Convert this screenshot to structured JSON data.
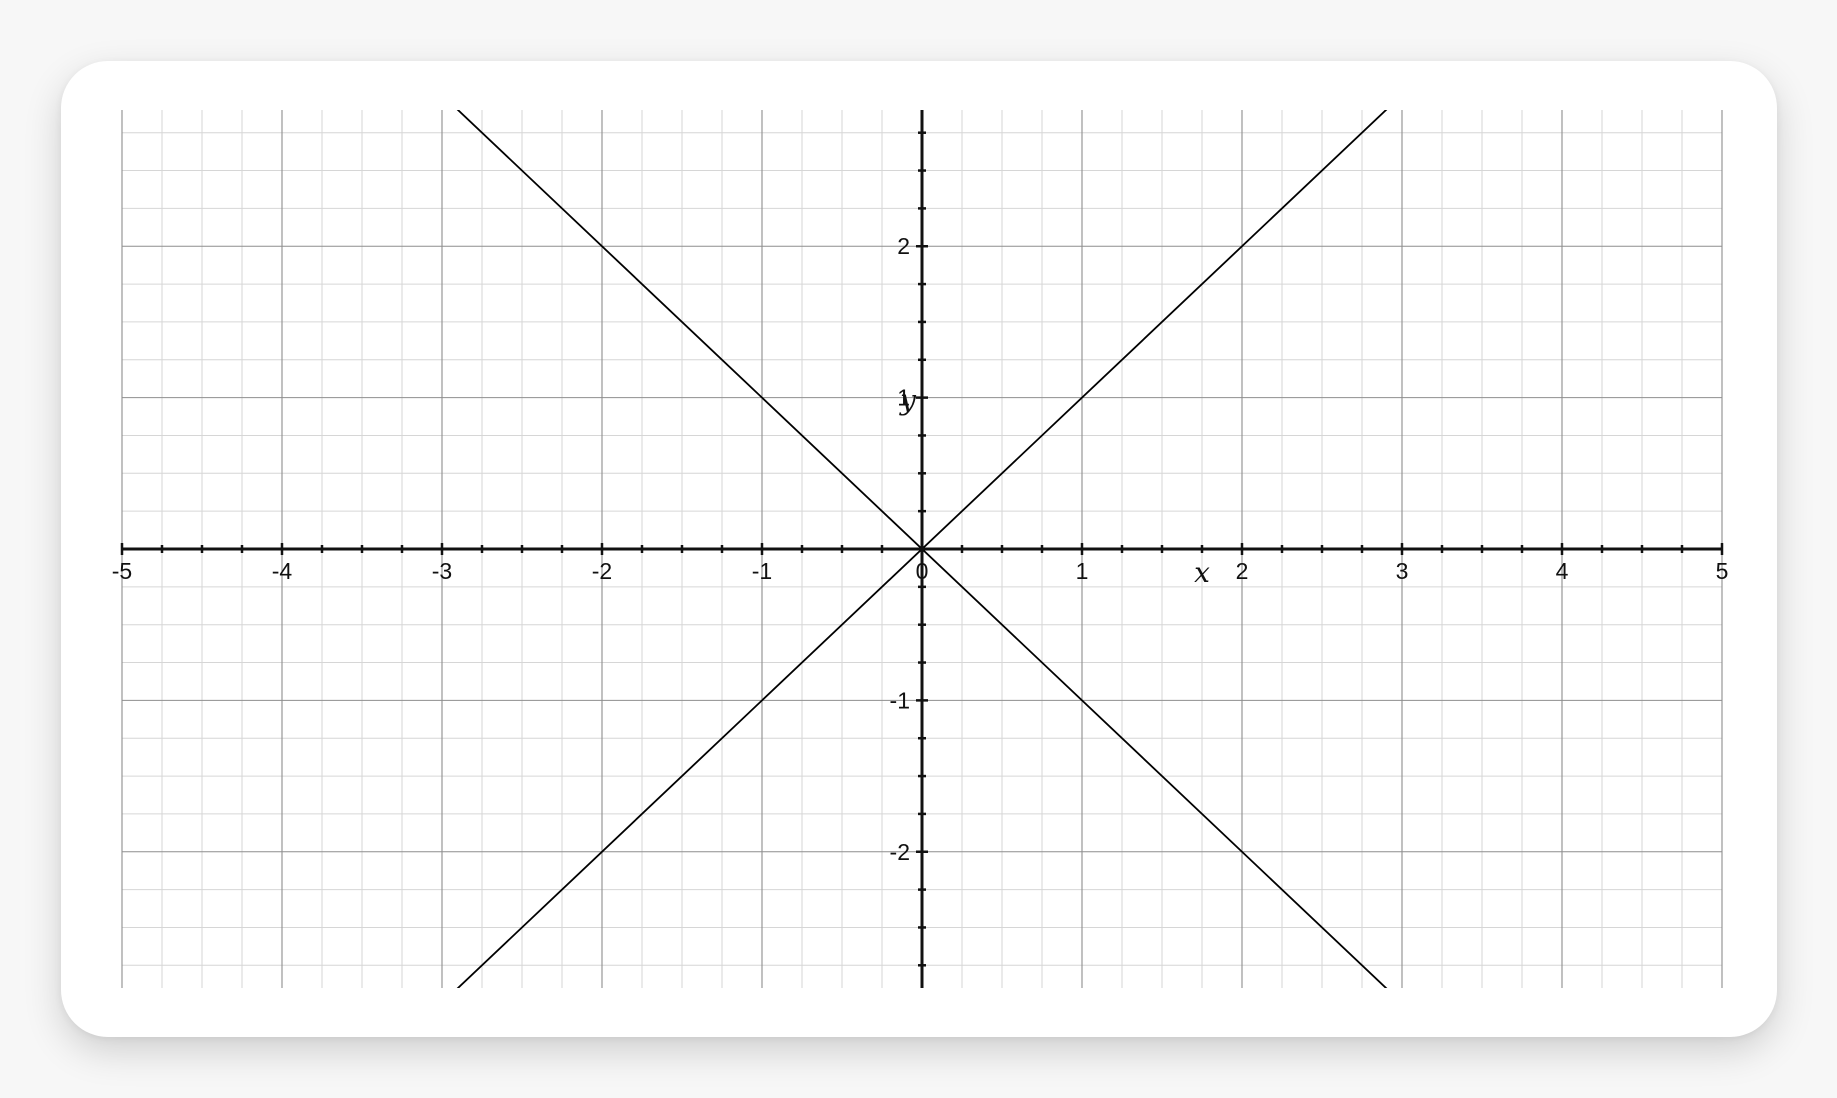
{
  "chart_data": {
    "type": "line",
    "title": "",
    "xlabel": "x",
    "ylabel": "y",
    "xlim": [
      -5,
      5
    ],
    "ylim": [
      -2.9,
      2.9
    ],
    "x_ticks": [
      -5,
      -4,
      -3,
      -2,
      -1,
      0,
      1,
      2,
      3,
      4,
      5
    ],
    "y_ticks": [
      -2,
      -1,
      1,
      2
    ],
    "x_tick_labels": [
      "-5",
      "-4",
      "-3",
      "-2",
      "-1",
      "0",
      "1",
      "2",
      "3",
      "4",
      "5"
    ],
    "y_tick_labels": [
      "-2",
      "-1",
      "1",
      "2"
    ],
    "grid": true,
    "minor_grid_step": 0.25,
    "legend": "none",
    "series": [
      {
        "x": [
          -3,
          3
        ],
        "y": [
          -3,
          3
        ],
        "color": "#000000"
      },
      {
        "x": [
          -3,
          3
        ],
        "y": [
          3,
          -3
        ],
        "color": "#000000"
      }
    ]
  }
}
